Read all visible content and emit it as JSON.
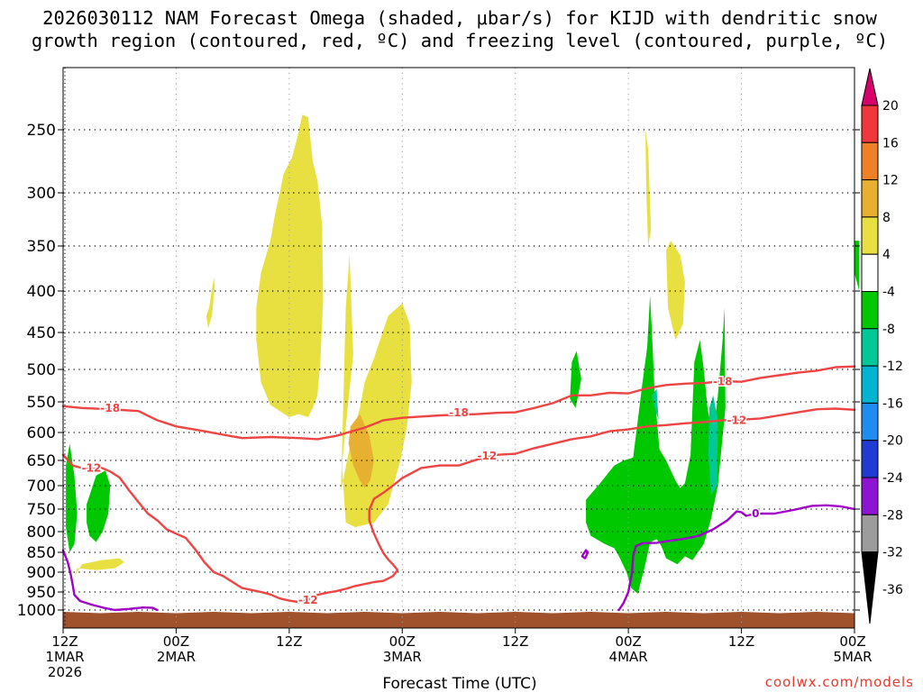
{
  "title": {
    "line1": "2026030112 NAM Forecast Omega (shaded, μbar/s) for KIJD with dendritic snow",
    "line2": "growth region (contoured, red, ºC) and freezing level (contoured, purple, ºC)"
  },
  "watermark": "coolwx.com/models",
  "chart_data": {
    "type": "contour",
    "title": "2026030112 NAM Forecast Omega (shaded, μbar/s) for KIJD with dendritic snow growth region (contoured, red, ºC) and freezing level (contoured, purple, ºC)",
    "xlabel": "Forecast Time (UTC)",
    "ylabel": "",
    "x_ticks": [
      {
        "hour": 0,
        "label": "12Z",
        "date": "1MAR",
        "year": "2026"
      },
      {
        "hour": 12,
        "label": "00Z",
        "date": "2MAR",
        "year": ""
      },
      {
        "hour": 24,
        "label": "12Z",
        "date": "",
        "year": ""
      },
      {
        "hour": 36,
        "label": "00Z",
        "date": "3MAR",
        "year": ""
      },
      {
        "hour": 48,
        "label": "12Z",
        "date": "",
        "year": ""
      },
      {
        "hour": 60,
        "label": "00Z",
        "date": "4MAR",
        "year": ""
      },
      {
        "hour": 72,
        "label": "12Z",
        "date": "",
        "year": ""
      },
      {
        "hour": 84,
        "label": "00Z",
        "date": "5MAR",
        "year": ""
      }
    ],
    "x_range_hours": [
      0,
      84
    ],
    "y_axis": "pressure (hPa), reversed",
    "y_ticks": [
      250,
      300,
      350,
      400,
      450,
      500,
      550,
      600,
      650,
      700,
      750,
      800,
      850,
      900,
      950,
      1000
    ],
    "grid": true,
    "colorbar": {
      "labels": [
        "20",
        "16",
        "12",
        "8",
        "4",
        "-4",
        "-8",
        "-12",
        "-16",
        "-20",
        "-24",
        "-28",
        "-32",
        "-36"
      ],
      "colors": [
        "#d8006a",
        "#f0383c",
        "#f08028",
        "#e8b030",
        "#e8e040",
        "#ffffff",
        "#00c800",
        "#00c896",
        "#00b4d2",
        "#1e8cf0",
        "#1e3cd2",
        "#8c14d2",
        "#9c9c9c",
        "#000000"
      ]
    },
    "series": [
      {
        "name": "-18",
        "color": "#ee4444",
        "x": [
          0,
          2,
          5,
          8,
          10,
          12,
          15,
          17,
          19,
          22,
          25,
          27,
          29,
          32,
          34,
          36,
          38,
          40,
          42,
          44,
          46,
          48,
          50,
          52,
          54,
          56,
          58,
          60,
          62,
          64,
          66,
          68,
          70,
          72,
          74,
          76,
          78,
          80,
          82,
          84
        ],
        "p": [
          557,
          560,
          562,
          565,
          580,
          590,
          598,
          604,
          610,
          608,
          610,
          612,
          606,
          592,
          580,
          576,
          574,
          572,
          571,
          570,
          568,
          567,
          560,
          552,
          540,
          540,
          536,
          537,
          529,
          524,
          522,
          521,
          518,
          519,
          513,
          509,
          505,
          502,
          497,
          496
        ]
      },
      {
        "name": "-12",
        "color": "#ee4444",
        "x": [
          0,
          1,
          2,
          3,
          4,
          5,
          6,
          7,
          8,
          9,
          10,
          11,
          12,
          13,
          14,
          15,
          16,
          17,
          18,
          19,
          20,
          21,
          22,
          23,
          24,
          25,
          26,
          27,
          28,
          29,
          30,
          31,
          32,
          33,
          34,
          35,
          35.5,
          35,
          34.5,
          34,
          33.5,
          33,
          32.5,
          32.5,
          33,
          34,
          35,
          36,
          38,
          40,
          42,
          44,
          46,
          48,
          50,
          52,
          54,
          56,
          58,
          60,
          62,
          64,
          66,
          68,
          70,
          72,
          74,
          76,
          78,
          80,
          82,
          84
        ],
        "p": [
          640,
          660,
          665,
          668,
          664,
          672,
          684,
          710,
          735,
          760,
          775,
          795,
          805,
          815,
          842,
          875,
          900,
          910,
          925,
          940,
          945,
          950,
          957,
          968,
          974,
          978,
          972,
          958,
          952,
          948,
          942,
          935,
          930,
          925,
          922,
          910,
          895,
          880,
          868,
          852,
          830,
          805,
          775,
          752,
          728,
          715,
          700,
          685,
          665,
          660,
          660,
          648,
          640,
          638,
          628,
          620,
          612,
          607,
          598,
          595,
          590,
          588,
          585,
          583,
          580,
          579,
          577,
          572,
          567,
          562,
          561,
          563
        ]
      },
      {
        "name": "0",
        "color": "#a000c8",
        "x": [
          0,
          0.5,
          0.8,
          1,
          1.2,
          1.8,
          3,
          4.5,
          5.5,
          7,
          8.5,
          9.5,
          10
        ],
        "p": [
          845,
          875,
          905,
          930,
          958,
          975,
          985,
          995,
          1000,
          997,
          993,
          994,
          1000
        ]
      },
      {
        "name": "0",
        "color": "#a000c8",
        "x": [
          59,
          59.5,
          60,
          60.4,
          60.5,
          60.8,
          61.5,
          63,
          64.5,
          66,
          67.5,
          69,
          70.5,
          71.5,
          72,
          72.5,
          73.5,
          75.5,
          77.5,
          79.5,
          81,
          82.5,
          84
        ],
        "p": [
          1000,
          980,
          950,
          900,
          860,
          835,
          828,
          827,
          822,
          817,
          810,
          795,
          775,
          755,
          757,
          765,
          760,
          760,
          752,
          743,
          742,
          744,
          750
        ]
      },
      {
        "name": "0",
        "color": "#a000c8",
        "closed": true,
        "x": [
          55.2,
          55.5,
          55.7,
          55.4,
          55.1
        ],
        "p": [
          855,
          845,
          850,
          865,
          860
        ]
      }
    ],
    "omega_regions": [
      {
        "category": "4 to 8",
        "color": "#e8e040",
        "x": [
          20.5,
          21,
          22,
          22.5,
          23,
          23.4,
          24.3,
          24.8,
          25.4,
          26,
          26.5,
          27,
          27.5,
          27.6,
          27.3,
          27,
          26.5,
          26,
          25,
          24,
          23,
          22,
          21,
          20.5
        ],
        "p": [
          420,
          380,
          345,
          320,
          300,
          285,
          272,
          258,
          238,
          240,
          275,
          290,
          330,
          410,
          490,
          540,
          560,
          575,
          570,
          575,
          565,
          555,
          520,
          460
        ]
      },
      {
        "category": "4 to 8",
        "color": "#e8e040",
        "x": [
          29.5,
          30.5,
          31.5,
          32,
          33,
          34.5,
          36,
          36.8,
          37,
          36.5,
          35.8,
          34.5,
          33,
          31,
          30,
          29.8,
          29.6,
          30.2,
          30.8,
          30.4,
          30
        ],
        "p": [
          710,
          620,
          560,
          520,
          485,
          430,
          415,
          440,
          520,
          590,
          650,
          740,
          780,
          790,
          780,
          720,
          660,
          560,
          480,
          360,
          420
        ]
      },
      {
        "category": "4 to 8",
        "color": "#e8e040",
        "x": [
          15.5,
          16,
          16.1,
          15.8,
          15.4,
          15.2
        ],
        "p": [
          420,
          385,
          395,
          430,
          445,
          430
        ]
      },
      {
        "category": "4 to 8",
        "color": "#e8e040",
        "x": [
          1.5,
          3.5,
          5.5,
          6.5,
          6,
          4,
          2,
          1.2
        ],
        "p": [
          890,
          895,
          890,
          875,
          865,
          870,
          880,
          910
        ]
      },
      {
        "category": "4 to 8",
        "color": "#e8e040",
        "x": [
          61.8,
          62.1,
          62.4,
          62.1,
          61.9
        ],
        "p": [
          250,
          265,
          335,
          350,
          300
        ]
      },
      {
        "category": "4 to 8",
        "color": "#e8e040",
        "x": [
          64,
          64.5,
          65.5,
          66,
          65.8,
          65,
          64.2
        ],
        "p": [
          355,
          345,
          360,
          390,
          440,
          460,
          420
        ]
      },
      {
        "category": "8 to 12",
        "color": "#e8b030",
        "x": [
          30.5,
          31.5,
          32.5,
          33,
          32.6,
          32,
          31.5,
          30.8,
          30.3
        ],
        "p": [
          590,
          570,
          605,
          650,
          690,
          705,
          690,
          660,
          620
        ]
      },
      {
        "category": "-4 to -8",
        "color": "#00c800",
        "x": [
          54,
          54.5,
          55,
          54.4,
          53.8
        ],
        "p": [
          490,
          475,
          515,
          560,
          545
        ]
      },
      {
        "category": "-4 to -8",
        "color": "#00c800",
        "x": [
          55.5,
          57,
          58.5,
          59.5,
          60.5,
          61,
          61.5,
          62,
          62.3,
          62.5,
          62.8,
          63.3,
          64,
          65,
          65.5,
          66,
          66.6,
          67,
          67.6,
          68,
          68.4,
          69,
          69.5,
          70,
          70.2,
          70.3,
          69.5,
          68.8,
          68,
          66.8,
          66,
          65.2,
          64,
          63.5,
          63,
          62.3,
          61.8,
          61,
          60.3,
          59.8,
          59,
          58.5,
          57.5,
          56,
          55.5
        ],
        "p": [
          730,
          695,
          660,
          650,
          645,
          580,
          520,
          470,
          405,
          450,
          540,
          630,
          650,
          690,
          705,
          695,
          640,
          490,
          460,
          500,
          560,
          610,
          540,
          460,
          420,
          560,
          700,
          770,
          830,
          870,
          860,
          880,
          865,
          835,
          818,
          826,
          880,
          955,
          940,
          900,
          860,
          840,
          830,
          810,
          780
        ]
      },
      {
        "category": "-4 to -8",
        "color": "#00c800",
        "x": [
          0.3,
          0.7,
          1.2,
          1.5,
          1.2,
          0.7,
          0.3
        ],
        "p": [
          660,
          620,
          680,
          760,
          830,
          850,
          790
        ]
      },
      {
        "category": "-4 to -8",
        "color": "#00c800",
        "x": [
          2.5,
          3.5,
          4.5,
          5,
          4.8,
          4.2,
          3.5,
          2.8,
          2.5
        ],
        "p": [
          740,
          680,
          670,
          700,
          760,
          800,
          825,
          810,
          780
        ]
      },
      {
        "category": "-4 to -8",
        "color": "#00c800",
        "x": [
          84,
          84.5,
          84.5,
          84
        ],
        "p": [
          345,
          345,
          400,
          380
        ]
      },
      {
        "category": "-8 to -12",
        "color": "#00c896",
        "x": [
          68.6,
          69,
          69.5,
          69.4,
          68.8,
          68.5
        ],
        "p": [
          560,
          540,
          580,
          700,
          720,
          640
        ]
      },
      {
        "category": "-8 to -12",
        "color": "#00c896",
        "x": [
          62.5,
          63,
          63.2,
          62.8
        ],
        "p": [
          540,
          530,
          580,
          560
        ]
      }
    ],
    "contour_labels": [
      {
        "text": "-18",
        "x": 5,
        "p": 560,
        "color": "#ee4444"
      },
      {
        "text": "-18",
        "x": 42,
        "p": 568,
        "color": "#ee4444"
      },
      {
        "text": "-18",
        "x": 70,
        "p": 519,
        "color": "#ee4444"
      },
      {
        "text": "-12",
        "x": 3,
        "p": 665,
        "color": "#ee4444"
      },
      {
        "text": "-12",
        "x": 45,
        "p": 642,
        "color": "#ee4444"
      },
      {
        "text": "-12",
        "x": 71.5,
        "p": 580,
        "color": "#ee4444"
      },
      {
        "text": "-12",
        "x": 26,
        "p": 973,
        "color": "#ee4444"
      },
      {
        "text": "0",
        "x": 73.5,
        "p": 760,
        "color": "#a000c8"
      }
    ],
    "terrain": {
      "color": "#a0522d",
      "p_surface": 1005
    }
  }
}
